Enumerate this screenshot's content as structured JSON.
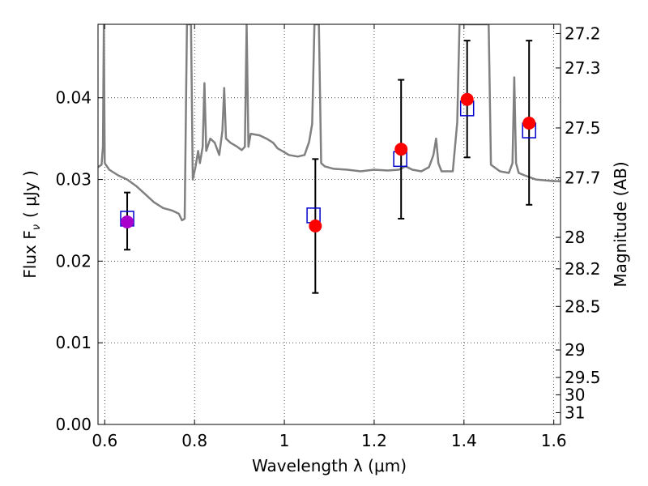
{
  "chart_data": {
    "type": "scatter",
    "xlabel": "Wavelength  λ (μm)",
    "ylabel_left": "Flux  F",
    "ylabel_left_sub": "ν",
    "ylabel_left_unit": "( μJy )",
    "ylabel_right": "Magnitude (AB)",
    "xlim": [
      0.585,
      1.615
    ],
    "ylim": [
      0.0,
      0.049
    ],
    "grid": true,
    "x_ticks": [
      {
        "value": 0.6,
        "label": "0.6"
      },
      {
        "value": 0.8,
        "label": "0.8"
      },
      {
        "value": 1.0,
        "label": "1"
      },
      {
        "value": 1.2,
        "label": "1.2"
      },
      {
        "value": 1.4,
        "label": "1.4"
      },
      {
        "value": 1.6,
        "label": "1.6"
      }
    ],
    "y_ticks": [
      {
        "value": 0.0,
        "label": "0.00"
      },
      {
        "value": 0.01,
        "label": "0.01"
      },
      {
        "value": 0.02,
        "label": "0.02"
      },
      {
        "value": 0.03,
        "label": "0.03"
      },
      {
        "value": 0.04,
        "label": "0.04"
      }
    ],
    "right_ticks": [
      {
        "mag": 27.2,
        "label": "27.2"
      },
      {
        "mag": 27.3,
        "label": "27.3"
      },
      {
        "mag": 27.5,
        "label": "27.5"
      },
      {
        "mag": 27.7,
        "label": "27.7"
      },
      {
        "mag": 28.0,
        "label": "28"
      },
      {
        "mag": 28.2,
        "label": "28.2"
      },
      {
        "mag": 28.5,
        "label": "28.5"
      },
      {
        "mag": 29.0,
        "label": "29"
      },
      {
        "mag": 29.5,
        "label": "29.5"
      },
      {
        "mag": 30.0,
        "label": "30"
      },
      {
        "mag": 31.0,
        "label": "31"
      }
    ],
    "model_spectrum": {
      "color": "#808080",
      "points": [
        [
          0.585,
          0.0315
        ],
        [
          0.593,
          0.0318
        ],
        [
          0.596,
          0.034
        ],
        [
          0.598,
          0.049
        ],
        [
          0.6,
          0.032
        ],
        [
          0.61,
          0.0312
        ],
        [
          0.63,
          0.0305
        ],
        [
          0.65,
          0.03
        ],
        [
          0.67,
          0.0292
        ],
        [
          0.69,
          0.0282
        ],
        [
          0.71,
          0.0272
        ],
        [
          0.73,
          0.0265
        ],
        [
          0.75,
          0.0262
        ],
        [
          0.765,
          0.0258
        ],
        [
          0.772,
          0.025
        ],
        [
          0.778,
          0.0252
        ],
        [
          0.783,
          0.049
        ],
        [
          0.792,
          0.049
        ],
        [
          0.796,
          0.03
        ],
        [
          0.802,
          0.0315
        ],
        [
          0.808,
          0.0335
        ],
        [
          0.812,
          0.032
        ],
        [
          0.818,
          0.034
        ],
        [
          0.822,
          0.0418
        ],
        [
          0.826,
          0.0335
        ],
        [
          0.835,
          0.035
        ],
        [
          0.845,
          0.0345
        ],
        [
          0.855,
          0.033
        ],
        [
          0.862,
          0.036
        ],
        [
          0.866,
          0.0412
        ],
        [
          0.87,
          0.035
        ],
        [
          0.88,
          0.0345
        ],
        [
          0.895,
          0.034
        ],
        [
          0.905,
          0.0336
        ],
        [
          0.912,
          0.034
        ],
        [
          0.916,
          0.049
        ],
        [
          0.92,
          0.034
        ],
        [
          0.925,
          0.0356
        ],
        [
          0.945,
          0.0354
        ],
        [
          0.96,
          0.035
        ],
        [
          0.975,
          0.0345
        ],
        [
          0.985,
          0.0338
        ],
        [
          0.995,
          0.0335
        ],
        [
          1.01,
          0.033
        ],
        [
          1.03,
          0.0328
        ],
        [
          1.045,
          0.033
        ],
        [
          1.055,
          0.0346
        ],
        [
          1.062,
          0.0368
        ],
        [
          1.067,
          0.049
        ],
        [
          1.077,
          0.049
        ],
        [
          1.082,
          0.032
        ],
        [
          1.09,
          0.0316
        ],
        [
          1.11,
          0.0313
        ],
        [
          1.14,
          0.0312
        ],
        [
          1.17,
          0.031
        ],
        [
          1.2,
          0.0312
        ],
        [
          1.23,
          0.0311
        ],
        [
          1.255,
          0.0312
        ],
        [
          1.27,
          0.0316
        ],
        [
          1.285,
          0.0312
        ],
        [
          1.305,
          0.031
        ],
        [
          1.322,
          0.0315
        ],
        [
          1.332,
          0.033
        ],
        [
          1.338,
          0.035
        ],
        [
          1.343,
          0.032
        ],
        [
          1.35,
          0.031
        ],
        [
          1.375,
          0.031
        ],
        [
          1.385,
          0.037
        ],
        [
          1.39,
          0.049
        ],
        [
          1.455,
          0.049
        ],
        [
          1.46,
          0.0318
        ],
        [
          1.48,
          0.031
        ],
        [
          1.5,
          0.0308
        ],
        [
          1.508,
          0.032
        ],
        [
          1.512,
          0.0425
        ],
        [
          1.516,
          0.032
        ],
        [
          1.522,
          0.0308
        ],
        [
          1.535,
          0.0305
        ],
        [
          1.56,
          0.03
        ],
        [
          1.58,
          0.0299
        ],
        [
          1.6,
          0.0298
        ],
        [
          1.615,
          0.0298
        ]
      ]
    },
    "observed": {
      "color": "#ff0000",
      "points": [
        {
          "x": 0.65,
          "y": 0.0248,
          "ylow": 0.0214,
          "yhigh": 0.0284
        },
        {
          "x": 1.069,
          "y": 0.0243,
          "ylow": 0.0161,
          "yhigh": 0.0325
        },
        {
          "x": 1.26,
          "y": 0.0337,
          "ylow": 0.0252,
          "yhigh": 0.0422
        },
        {
          "x": 1.407,
          "y": 0.0398,
          "ylow": 0.0327,
          "yhigh": 0.047
        },
        {
          "x": 1.545,
          "y": 0.0369,
          "ylow": 0.0269,
          "yhigh": 0.047
        }
      ]
    },
    "first_point_color": "#aa00cc",
    "model_photometry": {
      "color": "#0000cc",
      "points": [
        {
          "x": 0.65,
          "y": 0.0252
        },
        {
          "x": 1.065,
          "y": 0.0256
        },
        {
          "x": 1.258,
          "y": 0.0325
        },
        {
          "x": 1.407,
          "y": 0.0387
        },
        {
          "x": 1.545,
          "y": 0.036
        }
      ]
    }
  }
}
